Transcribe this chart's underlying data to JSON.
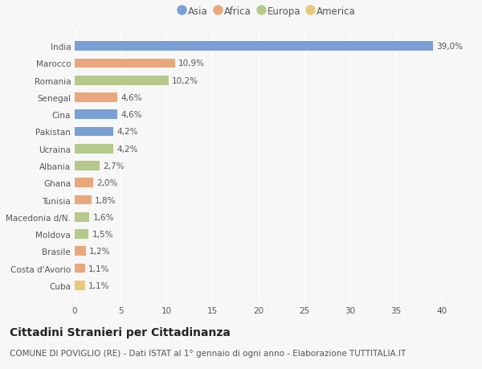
{
  "categories": [
    "Cuba",
    "Costa d'Avorio",
    "Brasile",
    "Moldova",
    "Macedonia d/N.",
    "Tunisia",
    "Ghana",
    "Albania",
    "Ucraina",
    "Pakistan",
    "Cina",
    "Senegal",
    "Romania",
    "Marocco",
    "India"
  ],
  "values": [
    1.1,
    1.1,
    1.2,
    1.5,
    1.6,
    1.8,
    2.0,
    2.7,
    4.2,
    4.2,
    4.6,
    4.6,
    10.2,
    10.9,
    39.0
  ],
  "labels": [
    "1,1%",
    "1,1%",
    "1,2%",
    "1,5%",
    "1,6%",
    "1,8%",
    "2,0%",
    "2,7%",
    "4,2%",
    "4,2%",
    "4,6%",
    "4,6%",
    "10,2%",
    "10,9%",
    "39,0%"
  ],
  "colors": [
    "#e8c87a",
    "#e8a87c",
    "#e8a87c",
    "#b5c98a",
    "#b5c98a",
    "#e8a87c",
    "#e8a87c",
    "#b5c98a",
    "#b5c98a",
    "#7a9fd4",
    "#7a9fd4",
    "#e8a87c",
    "#b5c98a",
    "#e8a87c",
    "#7a9fd4"
  ],
  "legend": [
    {
      "label": "Asia",
      "color": "#7a9fd4"
    },
    {
      "label": "Africa",
      "color": "#e8a87c"
    },
    {
      "label": "Europa",
      "color": "#b5c98a"
    },
    {
      "label": "America",
      "color": "#e8c87a"
    }
  ],
  "title": "Cittadini Stranieri per Cittadinanza",
  "subtitle": "COMUNE DI POVIGLIO (RE) - Dati ISTAT al 1° gennaio di ogni anno - Elaborazione TUTTITALIA.IT",
  "xlim": [
    0,
    42
  ],
  "xticks": [
    0,
    5,
    10,
    15,
    20,
    25,
    30,
    35,
    40
  ],
  "background_color": "#f7f7f7",
  "bar_height": 0.55,
  "title_fontsize": 10,
  "subtitle_fontsize": 7.5,
  "label_fontsize": 7.5,
  "tick_fontsize": 7.5,
  "legend_fontsize": 8.5
}
